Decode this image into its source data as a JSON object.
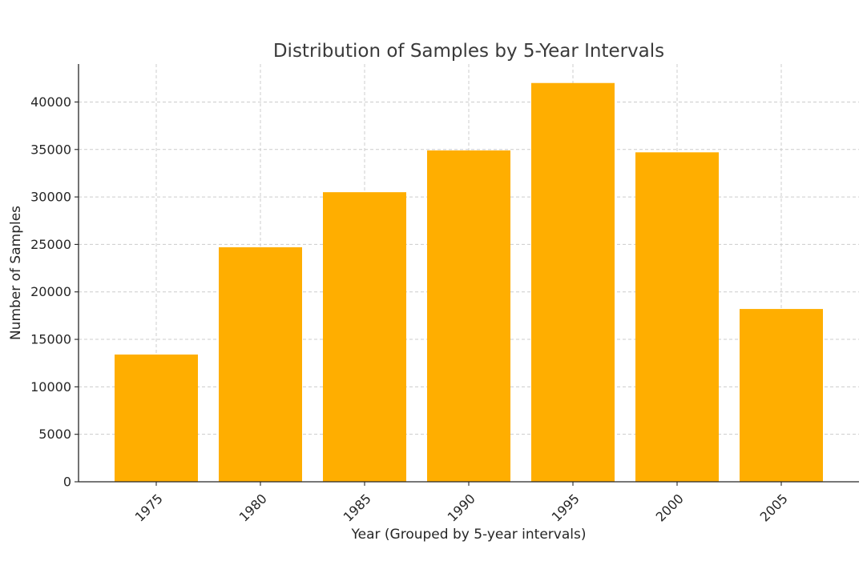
{
  "chart_data": {
    "type": "bar",
    "title": "Distribution of Samples by 5-Year Intervals",
    "xlabel": "Year (Grouped by 5-year intervals)",
    "ylabel": "Number of Samples",
    "categories": [
      "1975",
      "1980",
      "1985",
      "1990",
      "1995",
      "2000",
      "2005"
    ],
    "values": [
      13400,
      24700,
      30500,
      34900,
      42000,
      34700,
      18200
    ],
    "ylim": [
      0,
      44000
    ],
    "yticks": [
      0,
      5000,
      10000,
      15000,
      20000,
      25000,
      30000,
      35000,
      40000
    ],
    "ytick_labels": [
      "0",
      "5000",
      "10000",
      "15000",
      "20000",
      "25000",
      "30000",
      "35000",
      "40000"
    ],
    "grid": true,
    "bar_color": "#FFAE00"
  }
}
